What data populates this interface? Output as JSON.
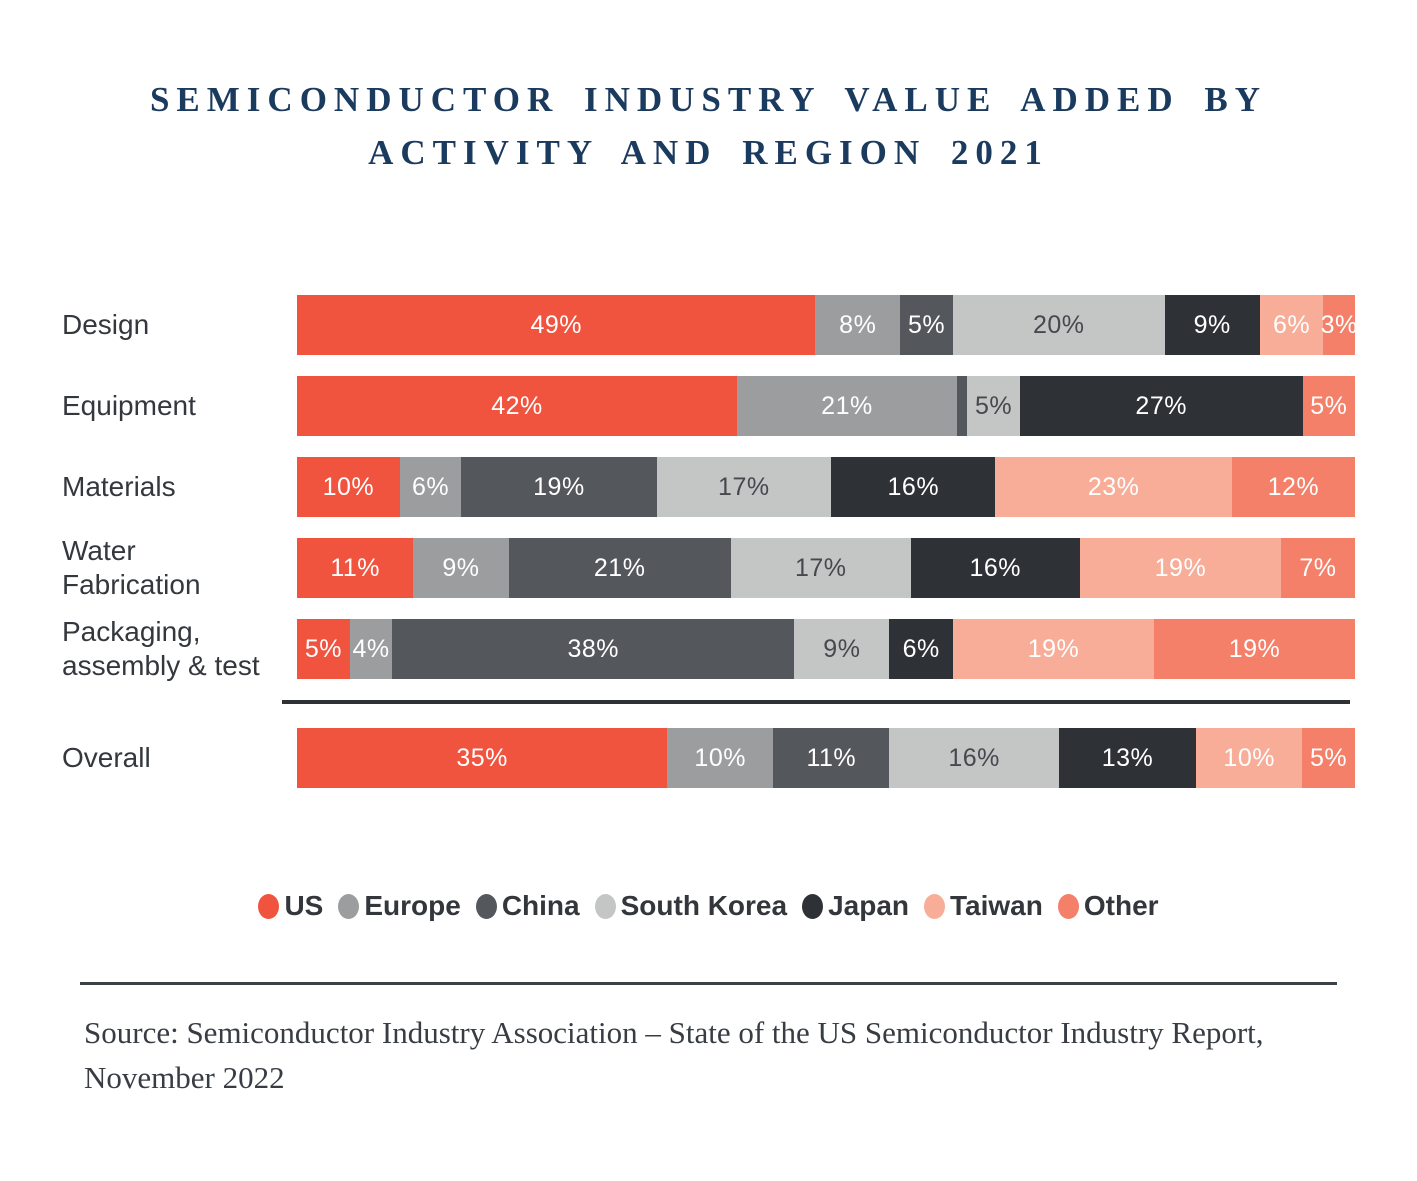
{
  "title": "SEMICONDUCTOR INDUSTRY VALUE ADDED BY ACTIVITY AND REGION 2021",
  "source": "Source: Semiconductor Industry Association – State of the US Semiconductor Industry Report, November 2022",
  "colors": {
    "US": "#F0543F",
    "Europe": "#9B9D9E",
    "China": "#54575C",
    "South Korea": "#C4C5C5",
    "Japan": "#2E3237",
    "Taiwan": "#F8AD98",
    "Other": "#F4806A",
    "title_navy": "#1A3A5E",
    "dark_segment_label": "#45494E",
    "divider": "#2E3237"
  },
  "chart_data": {
    "type": "bar",
    "stacked": true,
    "orientation": "horizontal",
    "unit": "%",
    "title": "Semiconductor industry value added by activity and region 2021",
    "categories": [
      "Design",
      "Equipment",
      "Materials",
      "Water Fabrication",
      "Packaging, assembly & test",
      "Overall"
    ],
    "series": [
      {
        "name": "US",
        "values": [
          49,
          42,
          10,
          11,
          5,
          35
        ]
      },
      {
        "name": "Europe",
        "values": [
          8,
          21,
          6,
          9,
          4,
          10
        ]
      },
      {
        "name": "China",
        "values": [
          5,
          1,
          19,
          21,
          38,
          11
        ]
      },
      {
        "name": "South Korea",
        "values": [
          20,
          5,
          17,
          17,
          9,
          16
        ]
      },
      {
        "name": "Japan",
        "values": [
          9,
          27,
          16,
          16,
          6,
          13
        ]
      },
      {
        "name": "Taiwan",
        "values": [
          6,
          0,
          23,
          19,
          19,
          10
        ]
      },
      {
        "name": "Other",
        "values": [
          3,
          5,
          12,
          7,
          19,
          5
        ]
      }
    ],
    "divider_after": "Packaging, assembly & test",
    "legend_position": "bottom",
    "legend": [
      "US",
      "Europe",
      "China",
      "South Korea",
      "Japan",
      "Taiwan",
      "Other"
    ]
  }
}
